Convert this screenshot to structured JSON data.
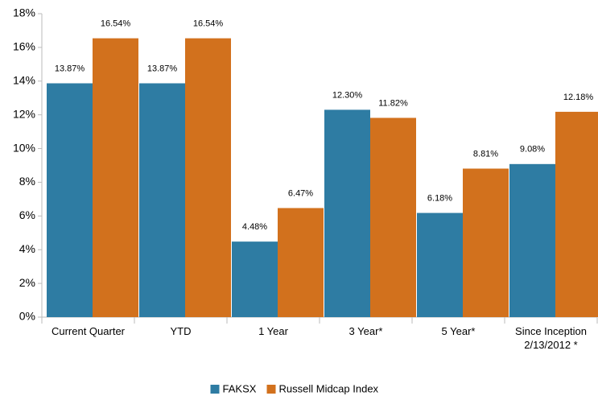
{
  "chart_data": {
    "type": "bar",
    "categories": [
      "Current Quarter",
      "YTD",
      "1 Year",
      "3 Year*",
      "5 Year*",
      "Since Inception 2/13/2012 *"
    ],
    "series": [
      {
        "name": "FAKSX",
        "color": "#2e7ca3",
        "values": [
          13.87,
          13.87,
          4.48,
          12.3,
          6.18,
          9.08
        ],
        "value_labels": [
          "13.87%",
          "13.87%",
          "4.48%",
          "12.30%",
          "6.18%",
          "9.08%"
        ]
      },
      {
        "name": "Russell Midcap Index",
        "color": "#d2711d",
        "values": [
          16.54,
          16.54,
          6.47,
          11.82,
          8.81,
          12.18
        ],
        "value_labels": [
          "16.54%",
          "16.54%",
          "6.47%",
          "11.82%",
          "8.81%",
          "12.18%"
        ]
      }
    ],
    "ylim": [
      0,
      18
    ],
    "yticks": [
      {
        "value": 0,
        "label": "0%"
      },
      {
        "value": 2,
        "label": "2%"
      },
      {
        "value": 4,
        "label": "4%"
      },
      {
        "value": 6,
        "label": "6%"
      },
      {
        "value": 8,
        "label": "8%"
      },
      {
        "value": 10,
        "label": "10%"
      },
      {
        "value": 12,
        "label": "12%"
      },
      {
        "value": 14,
        "label": "14%"
      },
      {
        "value": 16,
        "label": "16%"
      },
      {
        "value": 18,
        "label": "18%"
      }
    ],
    "grid": false,
    "legend": "bottom"
  }
}
